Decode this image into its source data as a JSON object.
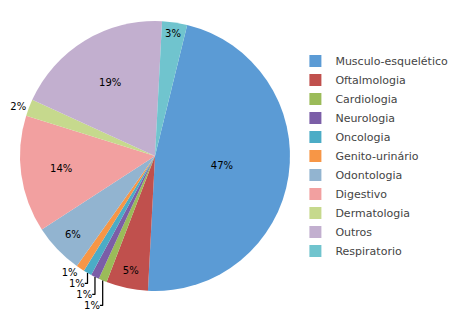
{
  "chart_data": {
    "type": "pie",
    "categories": [
      "Musculo-esquelético",
      "Oftalmologia",
      "Cardiologia",
      "Neurologia",
      "Oncologia",
      "Genito-urinário",
      "Odontologia",
      "Digestivo",
      "Dermatologia",
      "Outros",
      "Respiratorio"
    ],
    "values": [
      47,
      5,
      1,
      1,
      1,
      1,
      6,
      14,
      2,
      19,
      3
    ],
    "value_labels": [
      "47%",
      "5%",
      "1%",
      "1%",
      "1%",
      "1%",
      "6%",
      "14%",
      "2%",
      "19%",
      "3%"
    ],
    "colors": [
      "#5B9BD5",
      "#C0504D",
      "#9BBB59",
      "#7B5EA7",
      "#4BACC6",
      "#F79646",
      "#92B4D0",
      "#F2A0A0",
      "#C6D98D",
      "#C2AFCF",
      "#70C4CE"
    ],
    "legend": "right"
  }
}
